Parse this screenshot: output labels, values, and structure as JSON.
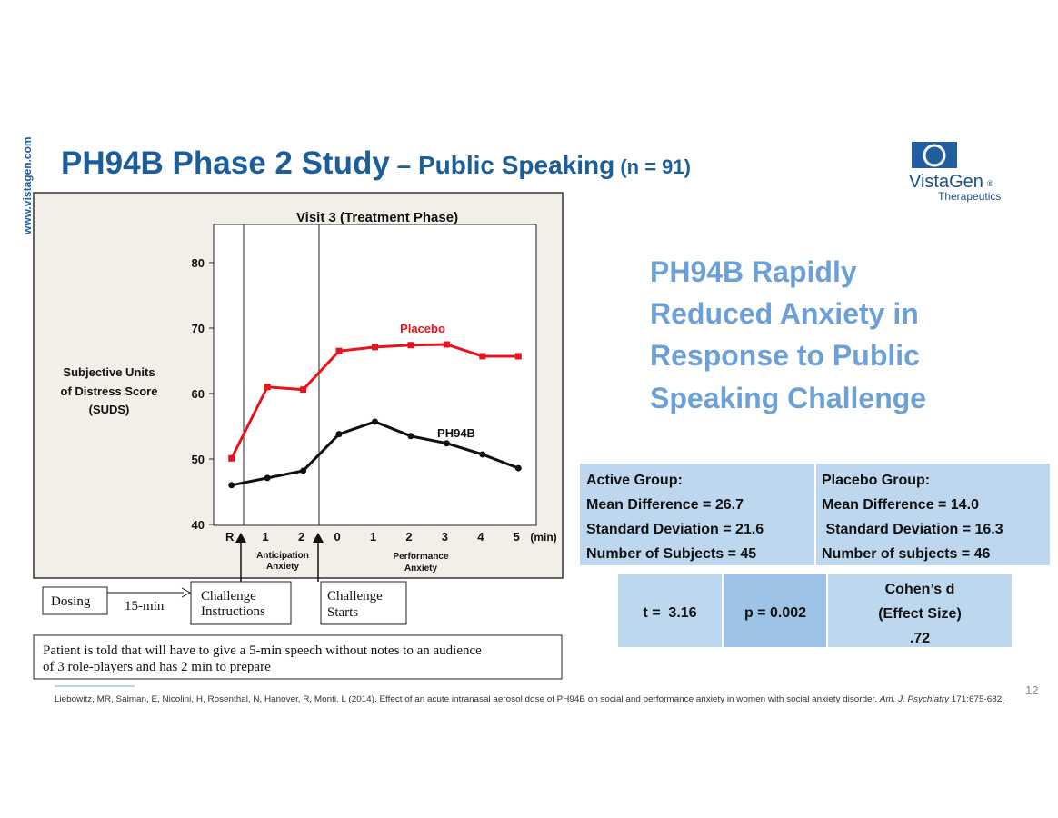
{
  "side_url": "www.vistagen.com",
  "title": {
    "main": "PH94B Phase 2 Study",
    "sub": " – Public Speaking",
    "n": " (n = 91)"
  },
  "logo": {
    "name": "VistaGen",
    "mark": "®",
    "tagline": "Therapeutics"
  },
  "headline": [
    "PH94B Rapidly",
    "Reduced Anxiety in",
    "Response to Public",
    "Speaking Challenge"
  ],
  "chart_data": {
    "type": "line",
    "title": "Visit 3 (Treatment Phase)",
    "y_label": [
      "Subjective Units",
      "of Distress Score",
      "(SUDS)"
    ],
    "x_unit": "(min)",
    "phases": [
      [
        "Anticipation",
        "Anxiety"
      ],
      [
        "Performance",
        "Anxiety"
      ]
    ],
    "categories": [
      "R",
      "1",
      "2",
      "0",
      "1",
      "2",
      "3",
      "4",
      "5"
    ],
    "series": [
      {
        "name": "Placebo",
        "color": "#e8141b",
        "marker": "square",
        "values": [
          50.1,
          61,
          60.6,
          66.5,
          67.1,
          67.4,
          67.5,
          65.7,
          65.7
        ]
      },
      {
        "name": "PH94B",
        "color": "#111111",
        "marker": "circle",
        "values": [
          46.0,
          47.1,
          48.2,
          53.8,
          55.7,
          53.5,
          52.4,
          50.7,
          48.6
        ]
      }
    ],
    "ylim": [
      40,
      86
    ],
    "yticks": [
      40,
      50,
      60,
      70,
      80
    ],
    "grid": false
  },
  "diagram": {
    "dosing": "Dosing",
    "interval": "15-min",
    "instructions": [
      "Challenge",
      "Instructions"
    ],
    "starts": [
      "Challenge",
      "Starts"
    ],
    "note": [
      "Patient is told that will have to give a 5-min speech without notes to an audience",
      "of 3 role-players and has 2 min to prepare"
    ]
  },
  "groups_table": {
    "rows": [
      [
        "Active Group:",
        "Placebo Group:"
      ],
      [
        "Mean Difference = 26.7",
        "Mean Difference = 14.0"
      ],
      [
        "Standard Deviation = 21.6",
        " Standard Deviation = 16.3"
      ],
      [
        "Number of Subjects = 45",
        "Number of subjects = 46"
      ]
    ]
  },
  "stats_table": {
    "t": "t =  3.16",
    "p": "p = 0.002",
    "d": [
      "Cohen’s d",
      "(Effect Size)",
      ".72"
    ]
  },
  "footnote": [
    "Liebowitz, MR, Salman, E, Nicolini, H, Rosenthal, N, Hanover, R, Monti. L (2014). Effect of an acute intranasal aerosol dose of PH94B on social and performance anxiety in women with social anxiety disorder. ",
    "Am. J. Psychiatry",
    " 171:675-682."
  ],
  "page_number": "12"
}
